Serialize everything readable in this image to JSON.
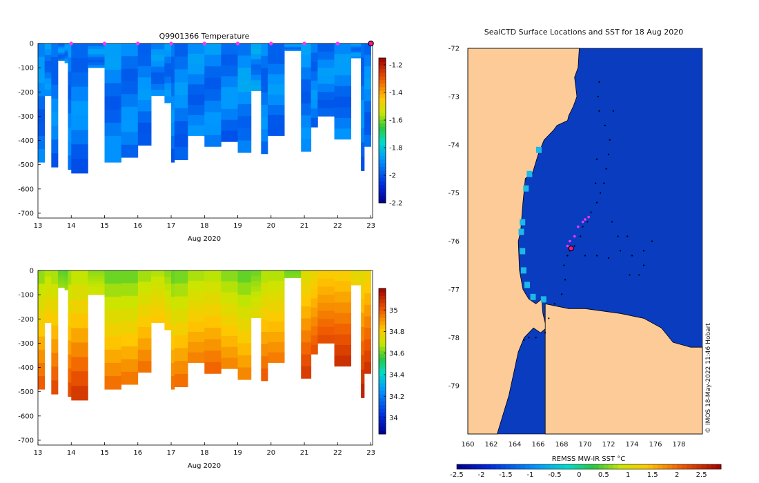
{
  "figure": {
    "credit": "© IMOS 18-May-2022 11:46 Hobart",
    "colors": {
      "ocean": "#0a3cbf",
      "land": "#fdcb98",
      "coast": "#000000",
      "track": "#000000",
      "recent_profiles": "#ff33ff",
      "current_position": "#ff1493"
    }
  },
  "chart_data": [
    {
      "id": "temperature_section",
      "type": "heatmap",
      "title": "Q9901366  Temperature",
      "xlabel": "Aug 2020",
      "xlim": [
        13,
        23.05
      ],
      "xticks": [
        "13",
        "14",
        "15",
        "16",
        "17",
        "18",
        "19",
        "20",
        "21",
        "22",
        "23"
      ],
      "ylim": [
        -720,
        0
      ],
      "yticks": [
        "0",
        "-100",
        "-200",
        "-300",
        "-400",
        "-500",
        "-600",
        "-700"
      ],
      "colorbar": {
        "range": [
          -2.2,
          -1.15
        ],
        "ticks": [
          "-1.2",
          "-1.4",
          "-1.6",
          "-1.8",
          "-2",
          "-2.2"
        ]
      },
      "profile_markers": [
        14,
        15,
        16,
        17,
        18,
        19,
        20,
        21,
        22
      ],
      "latest_profile": 23,
      "profiles": [
        {
          "t0": 13.0,
          "t1": 13.2,
          "depth": 490
        },
        {
          "t0": 13.2,
          "t1": 13.4,
          "depth": 215
        },
        {
          "t0": 13.4,
          "t1": 13.6,
          "depth": 510
        },
        {
          "t0": 13.6,
          "t1": 13.8,
          "depth": 70
        },
        {
          "t0": 13.8,
          "t1": 13.9,
          "depth": 80
        },
        {
          "t0": 13.9,
          "t1": 14.0,
          "depth": 520
        },
        {
          "t0": 14.0,
          "t1": 14.5,
          "depth": 535
        },
        {
          "t0": 14.5,
          "t1": 15.0,
          "depth": 100
        },
        {
          "t0": 15.0,
          "t1": 15.5,
          "depth": 490
        },
        {
          "t0": 15.5,
          "t1": 16.0,
          "depth": 470
        },
        {
          "t0": 16.0,
          "t1": 16.4,
          "depth": 420
        },
        {
          "t0": 16.4,
          "t1": 16.8,
          "depth": 215
        },
        {
          "t0": 16.8,
          "t1": 17.0,
          "depth": 245
        },
        {
          "t0": 17.0,
          "t1": 17.1,
          "depth": 490
        },
        {
          "t0": 17.1,
          "t1": 17.5,
          "depth": 480
        },
        {
          "t0": 17.5,
          "t1": 18.0,
          "depth": 380
        },
        {
          "t0": 18.0,
          "t1": 18.5,
          "depth": 425
        },
        {
          "t0": 18.5,
          "t1": 19.0,
          "depth": 405
        },
        {
          "t0": 19.0,
          "t1": 19.4,
          "depth": 450
        },
        {
          "t0": 19.4,
          "t1": 19.7,
          "depth": 195
        },
        {
          "t0": 19.7,
          "t1": 19.9,
          "depth": 455
        },
        {
          "t0": 19.9,
          "t1": 20.4,
          "depth": 380
        },
        {
          "t0": 20.4,
          "t1": 20.9,
          "depth": 30
        },
        {
          "t0": 20.9,
          "t1": 21.2,
          "depth": 445
        },
        {
          "t0": 21.2,
          "t1": 21.4,
          "depth": 345
        },
        {
          "t0": 21.4,
          "t1": 21.9,
          "depth": 300
        },
        {
          "t0": 21.9,
          "t1": 22.4,
          "depth": 395
        },
        {
          "t0": 22.4,
          "t1": 22.7,
          "depth": 60
        },
        {
          "t0": 22.7,
          "t1": 22.8,
          "depth": 525
        },
        {
          "t0": 22.8,
          "t1": 23.0,
          "depth": 425
        }
      ]
    },
    {
      "id": "salinity_section",
      "type": "heatmap",
      "title": "",
      "xlabel": "Aug 2020",
      "xlim": [
        13,
        23.05
      ],
      "xticks": [
        "13",
        "14",
        "15",
        "16",
        "17",
        "18",
        "19",
        "20",
        "21",
        "22",
        "23"
      ],
      "ylim": [
        -720,
        0
      ],
      "yticks": [
        "0",
        "-100",
        "-200",
        "-300",
        "-400",
        "-500",
        "-600",
        "-700"
      ],
      "colorbar": {
        "range": [
          33.85,
          35.2
        ],
        "ticks": [
          "35",
          "34.8",
          "34.6",
          "34.4",
          "34.2",
          "34"
        ]
      },
      "profiles": [
        {
          "t0": 13.0,
          "t1": 13.2,
          "depth": 490
        },
        {
          "t0": 13.2,
          "t1": 13.4,
          "depth": 215
        },
        {
          "t0": 13.4,
          "t1": 13.6,
          "depth": 510
        },
        {
          "t0": 13.6,
          "t1": 13.8,
          "depth": 70
        },
        {
          "t0": 13.8,
          "t1": 13.9,
          "depth": 80
        },
        {
          "t0": 13.9,
          "t1": 14.0,
          "depth": 520
        },
        {
          "t0": 14.0,
          "t1": 14.5,
          "depth": 535
        },
        {
          "t0": 14.5,
          "t1": 15.0,
          "depth": 100
        },
        {
          "t0": 15.0,
          "t1": 15.5,
          "depth": 490
        },
        {
          "t0": 15.5,
          "t1": 16.0,
          "depth": 470
        },
        {
          "t0": 16.0,
          "t1": 16.4,
          "depth": 420
        },
        {
          "t0": 16.4,
          "t1": 16.8,
          "depth": 215
        },
        {
          "t0": 16.8,
          "t1": 17.0,
          "depth": 245
        },
        {
          "t0": 17.0,
          "t1": 17.1,
          "depth": 490
        },
        {
          "t0": 17.1,
          "t1": 17.5,
          "depth": 480
        },
        {
          "t0": 17.5,
          "t1": 18.0,
          "depth": 380
        },
        {
          "t0": 18.0,
          "t1": 18.5,
          "depth": 425
        },
        {
          "t0": 18.5,
          "t1": 19.0,
          "depth": 405
        },
        {
          "t0": 19.0,
          "t1": 19.4,
          "depth": 450
        },
        {
          "t0": 19.4,
          "t1": 19.7,
          "depth": 195
        },
        {
          "t0": 19.7,
          "t1": 19.9,
          "depth": 455
        },
        {
          "t0": 19.9,
          "t1": 20.4,
          "depth": 380
        },
        {
          "t0": 20.4,
          "t1": 20.9,
          "depth": 30
        },
        {
          "t0": 20.9,
          "t1": 21.2,
          "depth": 445
        },
        {
          "t0": 21.2,
          "t1": 21.4,
          "depth": 345
        },
        {
          "t0": 21.4,
          "t1": 21.9,
          "depth": 300
        },
        {
          "t0": 21.9,
          "t1": 22.4,
          "depth": 395
        },
        {
          "t0": 22.4,
          "t1": 22.7,
          "depth": 60
        },
        {
          "t0": 22.7,
          "t1": 22.8,
          "depth": 525
        },
        {
          "t0": 22.8,
          "t1": 23.0,
          "depth": 425
        }
      ]
    },
    {
      "id": "sst_map",
      "type": "scatter",
      "title": "SealCTD Surface Locations and SST for 18 Aug 2020",
      "xlim": [
        160,
        180
      ],
      "ylim": [
        -80,
        -72
      ],
      "xticks": [
        "160",
        "162",
        "164",
        "166",
        "168",
        "170",
        "172",
        "174",
        "176",
        "178"
      ],
      "yticks": [
        "-72",
        "-73",
        "-74",
        "-75",
        "-76",
        "-77",
        "-78",
        "-79"
      ],
      "colorbar": {
        "label": "REMSS MW-IR SST °C",
        "range": [
          -2.5,
          2.9
        ],
        "ticks": [
          "-2.5",
          "-2",
          "-1.5",
          "-1",
          "-0.5",
          "0",
          "0.5",
          "1",
          "1.5",
          "2",
          "2.5"
        ]
      },
      "coast": [
        [
          162.3,
          -72
        ],
        [
          169.5,
          -72
        ],
        [
          169.4,
          -72.4
        ],
        [
          169.1,
          -72.6
        ],
        [
          169.3,
          -73
        ],
        [
          169,
          -73.2
        ],
        [
          168.6,
          -73.4
        ],
        [
          168.5,
          -73.5
        ],
        [
          167.6,
          -73.6
        ],
        [
          167.3,
          -73.7
        ],
        [
          166.5,
          -73.9
        ],
        [
          166,
          -74.2
        ],
        [
          165.5,
          -74.6
        ],
        [
          164.9,
          -74.7
        ],
        [
          164.7,
          -75.2
        ],
        [
          164.6,
          -75.5
        ],
        [
          164.5,
          -75.8
        ],
        [
          164.3,
          -76
        ],
        [
          164.4,
          -76.6
        ],
        [
          164.7,
          -77
        ],
        [
          165.2,
          -77.2
        ],
        [
          165.8,
          -77.3
        ],
        [
          166.3,
          -77.2
        ],
        [
          166.4,
          -77.5
        ],
        [
          166.7,
          -77.8
        ],
        [
          166.2,
          -77.9
        ],
        [
          165.6,
          -77.8
        ],
        [
          164.8,
          -78
        ],
        [
          164.3,
          -78.3
        ],
        [
          163.5,
          -79.2
        ],
        [
          162.5,
          -80
        ],
        [
          160,
          -80
        ],
        [
          160,
          -72
        ]
      ],
      "coast2": [
        [
          166.6,
          -77.3
        ],
        [
          168.6,
          -77.4
        ],
        [
          170,
          -77.4
        ],
        [
          171.5,
          -77.45
        ],
        [
          173,
          -77.5
        ],
        [
          175,
          -77.6
        ],
        [
          176.5,
          -77.8
        ],
        [
          177.5,
          -78.1
        ],
        [
          179,
          -78.2
        ],
        [
          180,
          -78.2
        ],
        [
          180,
          -80
        ],
        [
          166.6,
          -80
        ]
      ],
      "track": [
        [
          171.2,
          -72.7
        ],
        [
          171.1,
          -73.0
        ],
        [
          171.2,
          -73.3
        ],
        [
          171.7,
          -73.6
        ],
        [
          172.1,
          -73.9
        ],
        [
          172,
          -74.2
        ],
        [
          171.8,
          -74.5
        ],
        [
          171.6,
          -74.8
        ],
        [
          171.3,
          -75.0
        ],
        [
          171.0,
          -75.2
        ],
        [
          170.5,
          -75.4
        ],
        [
          170.2,
          -75.6
        ],
        [
          169.8,
          -75.7
        ],
        [
          169.6,
          -75.9
        ],
        [
          169.1,
          -76.1
        ],
        [
          168.7,
          -76.2
        ],
        [
          168.5,
          -76.3
        ],
        [
          168.2,
          -76.5
        ],
        [
          168.3,
          -76.8
        ],
        [
          168.0,
          -77.1
        ],
        [
          167.4,
          -77.3
        ],
        [
          166.9,
          -77.6
        ],
        [
          166.6,
          -77.9
        ],
        [
          165.8,
          -78.0
        ],
        [
          165.2,
          -78.0
        ],
        [
          164.8,
          -78.05
        ],
        [
          170,
          -76.3
        ],
        [
          171.0,
          -76.3
        ],
        [
          172.0,
          -76.35
        ],
        [
          173.0,
          -76.2
        ],
        [
          174.0,
          -76.3
        ],
        [
          175.0,
          -76.2
        ],
        [
          175.7,
          -76.0
        ],
        [
          175.0,
          -76.5
        ],
        [
          174.6,
          -76.7
        ],
        [
          173.8,
          -76.7
        ],
        [
          172.8,
          -75.9
        ],
        [
          173.6,
          -75.9
        ],
        [
          172.3,
          -75.6
        ],
        [
          171.0,
          -74.3
        ],
        [
          172.4,
          -73.3
        ],
        [
          170.9,
          -74.8
        ]
      ],
      "recent": [
        [
          170.3,
          -75.5
        ],
        [
          170.0,
          -75.55
        ],
        [
          169.8,
          -75.6
        ],
        [
          169.4,
          -75.7
        ],
        [
          169.1,
          -75.9
        ],
        [
          168.7,
          -76.0
        ],
        [
          168.5,
          -76.1
        ]
      ],
      "latest": [
        168.8,
        -76.15
      ]
    }
  ]
}
